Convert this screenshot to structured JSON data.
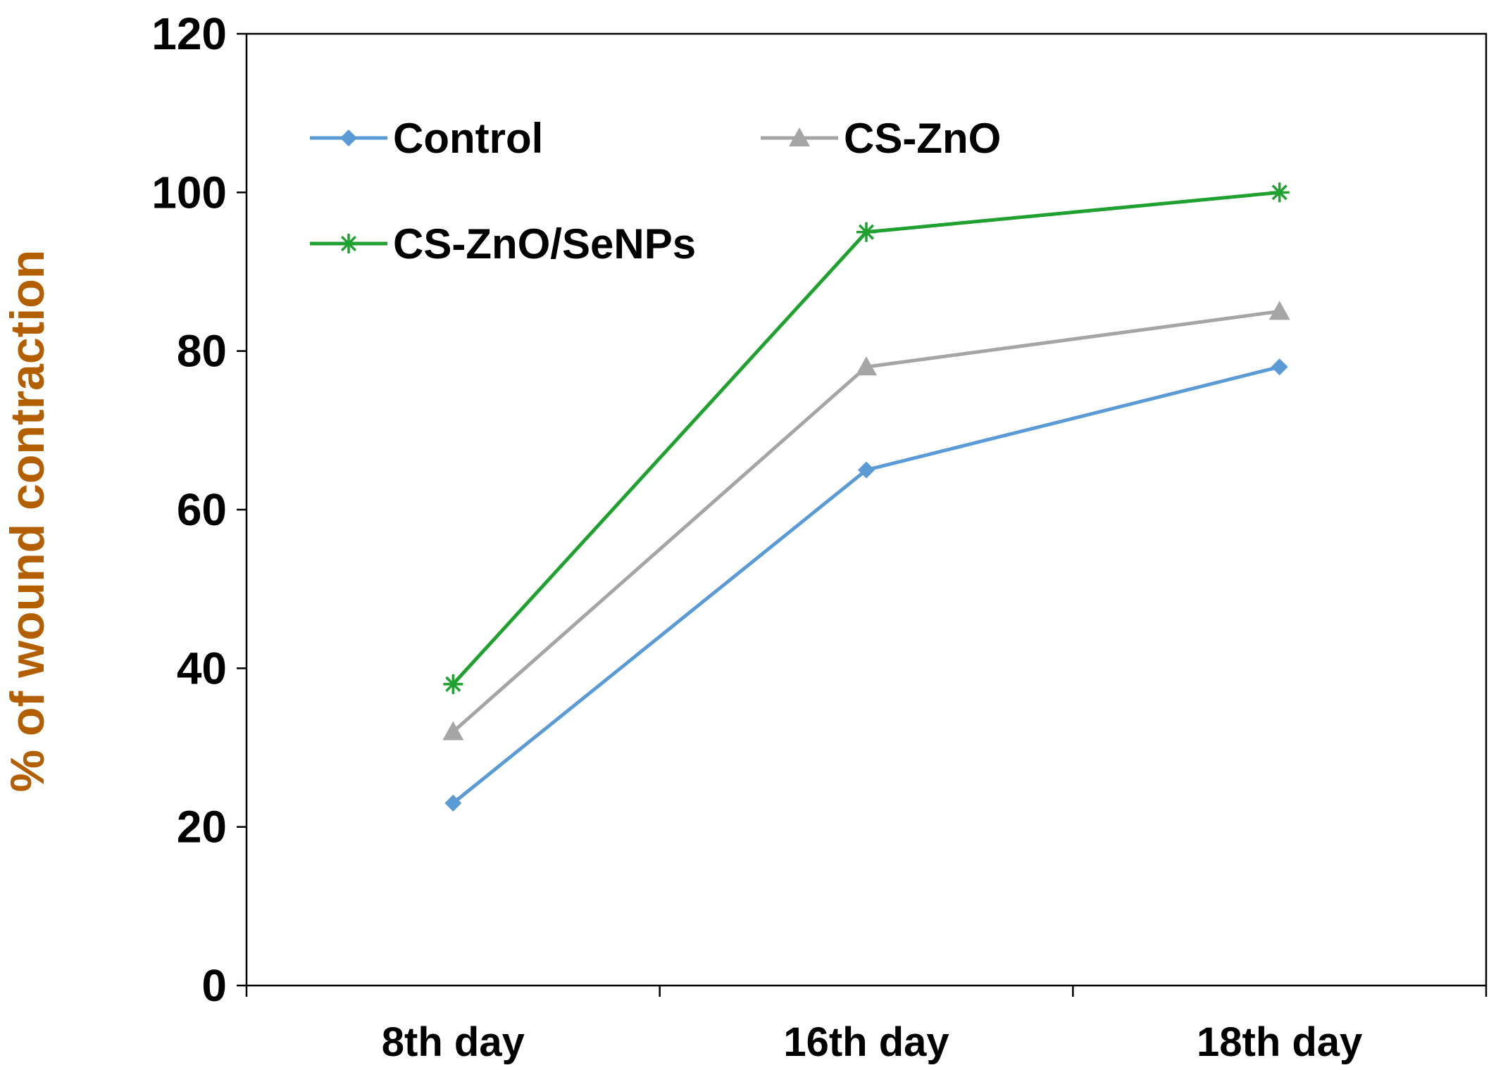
{
  "chart_data": {
    "type": "line",
    "title": "",
    "xlabel": "",
    "ylabel": "% of wound contraction",
    "ylabel_color": "#b35f00",
    "categories": [
      "8th day",
      "16th day",
      "18th day"
    ],
    "ylim": [
      0,
      120
    ],
    "yticks": [
      "0",
      "20",
      "40",
      "60",
      "80",
      "100",
      "120"
    ],
    "grid": false,
    "legend_position": "top-left",
    "series": [
      {
        "name": "Control",
        "values": [
          23,
          65,
          78
        ],
        "color": "#5b9bd5",
        "marker": "diamond"
      },
      {
        "name": "CS-ZnO",
        "values": [
          32,
          78,
          85
        ],
        "color": "#a5a5a5",
        "marker": "triangle"
      },
      {
        "name": "CS-ZnO/SeNPs",
        "values": [
          38,
          95,
          100
        ],
        "color": "#1ea12e",
        "marker": "star"
      }
    ]
  }
}
